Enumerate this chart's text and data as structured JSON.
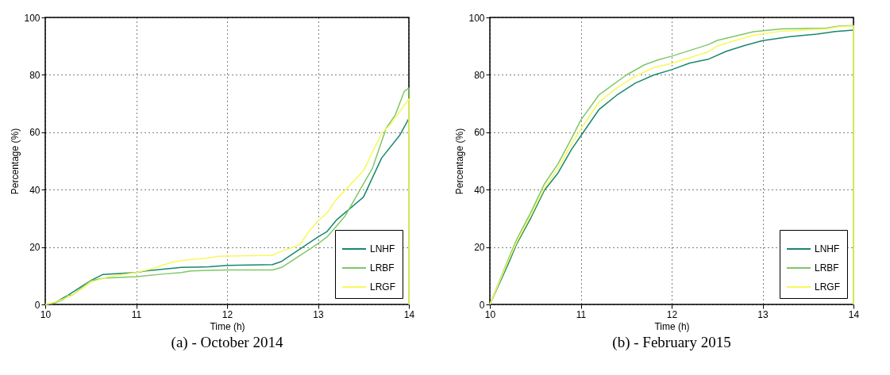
{
  "chart_data": [
    {
      "type": "line",
      "xlabel": "Time (h)",
      "ylabel": "Percentage (%)",
      "annotations": [
        "(a) - October 2014"
      ],
      "xlim": [
        10,
        14
      ],
      "xticks": [
        10,
        11,
        12,
        13,
        14
      ],
      "ylim": [
        0,
        100
      ],
      "yticks": [
        0,
        20,
        40,
        60,
        80,
        100
      ],
      "grid": true,
      "legend": "bottom right",
      "line_style": "solid",
      "series": [
        {
          "name": "LNHF",
          "color": "#17876e",
          "x": [
            10,
            10.1,
            10.25,
            10.5,
            10.63,
            11,
            11.1,
            11.5,
            11.8,
            12,
            12.5,
            12.6,
            13,
            13.1,
            13.2,
            13.5,
            13.7,
            13.9,
            14,
            14
          ],
          "values": [
            0,
            0.5,
            3.2,
            8.3,
            10.4,
            11.1,
            11.7,
            12.9,
            13.1,
            13.6,
            13.9,
            15,
            23.5,
            25.4,
            29.3,
            37.4,
            51,
            59,
            64.8,
            0
          ]
        },
        {
          "name": "LRBF",
          "color": "#7fc767",
          "x": [
            10,
            10.1,
            10.2,
            10.25,
            10.3,
            10.5,
            10.65,
            11,
            11.3,
            11.5,
            11.6,
            12,
            12.5,
            12.6,
            13,
            13.1,
            13.3,
            13.5,
            13.6,
            13.75,
            13.85,
            13.95,
            14,
            14
          ],
          "values": [
            0,
            0.5,
            1.7,
            3.2,
            3.2,
            8.3,
            9.2,
            9.7,
            10.6,
            11.1,
            11.7,
            12,
            12,
            12.9,
            21.2,
            23.5,
            30.9,
            42,
            47.5,
            61.4,
            66,
            74.3,
            75.4,
            0
          ]
        },
        {
          "name": "LRGF",
          "color": "#f8f85a",
          "x": [
            10,
            10.1,
            10.25,
            10.3,
            10.5,
            10.7,
            11,
            11.15,
            11.4,
            11.6,
            11.8,
            11.9,
            12.5,
            12.55,
            12.8,
            12.9,
            13,
            13.1,
            13.2,
            13.5,
            13.7,
            13.8,
            14,
            14
          ],
          "values": [
            0,
            0.8,
            2.5,
            3.2,
            7.7,
            9.7,
            11.1,
            12.2,
            14.8,
            15.7,
            16.2,
            16.8,
            17.1,
            18,
            20.8,
            25.4,
            29.1,
            31.9,
            36.5,
            46.6,
            59.6,
            62.8,
            71.6,
            0
          ]
        }
      ]
    },
    {
      "type": "line",
      "xlabel": "Time (h)",
      "ylabel": "Percentage (%)",
      "annotations": [
        "(b) - February 2015"
      ],
      "xlim": [
        10,
        14
      ],
      "xticks": [
        10,
        11,
        12,
        13,
        14
      ],
      "ylim": [
        0,
        100
      ],
      "yticks": [
        0,
        20,
        40,
        60,
        80,
        100
      ],
      "grid": true,
      "legend": "bottom right",
      "line_style": "solid",
      "series": [
        {
          "name": "LNHF",
          "color": "#17876e",
          "x": [
            10,
            10.2,
            10.3,
            10.45,
            10.6,
            10.75,
            10.9,
            11,
            11.2,
            11.4,
            11.6,
            11.8,
            12,
            12.2,
            12.4,
            12.6,
            12.8,
            13,
            13.3,
            13.6,
            13.8,
            14,
            14
          ],
          "values": [
            0,
            14,
            21.4,
            30.1,
            39.8,
            45.8,
            54.1,
            58.7,
            67.9,
            73,
            77.1,
            79.9,
            81.8,
            84.1,
            85.4,
            88.2,
            90.2,
            91.9,
            93.3,
            94.2,
            95.1,
            95.6,
            0
          ]
        },
        {
          "name": "LRBF",
          "color": "#7fc767",
          "x": [
            10,
            10.2,
            10.3,
            10.45,
            10.6,
            10.75,
            10.9,
            11,
            11.2,
            11.3,
            11.5,
            11.7,
            11.85,
            12,
            12.2,
            12.4,
            12.5,
            12.7,
            12.9,
            13.2,
            13.7,
            13.85,
            14,
            14
          ],
          "values": [
            0,
            15.5,
            23,
            32,
            42,
            49,
            58,
            64.2,
            73,
            75.3,
            79.9,
            83.5,
            85.2,
            86.5,
            88.5,
            90.5,
            92,
            93.5,
            95,
            96,
            96.3,
            97,
            97.2,
            0
          ]
        },
        {
          "name": "LRGF",
          "color": "#f8f85a",
          "x": [
            10,
            10.2,
            10.3,
            10.45,
            10.6,
            10.75,
            10.9,
            11,
            11.2,
            11.4,
            11.6,
            11.8,
            12,
            12.2,
            12.4,
            12.5,
            12.7,
            12.9,
            13.2,
            13.7,
            13.85,
            14,
            14
          ],
          "values": [
            0,
            15,
            22,
            31,
            40.5,
            47.5,
            56,
            61,
            70.5,
            75.5,
            79.5,
            82.5,
            84,
            86,
            88,
            90,
            92,
            93.8,
            95.2,
            96,
            96.8,
            97,
            0
          ]
        }
      ]
    }
  ]
}
